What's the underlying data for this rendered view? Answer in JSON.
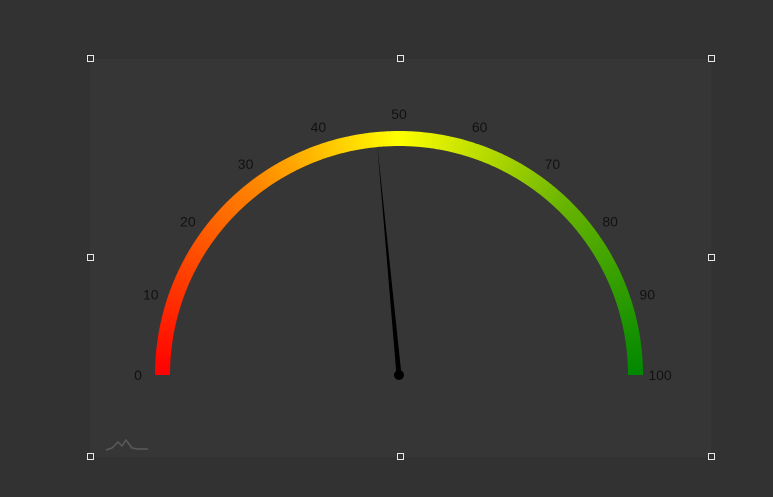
{
  "gauge": {
    "min": 0,
    "max": 100,
    "value": 47,
    "tick_labels": [
      "0",
      "10",
      "20",
      "30",
      "40",
      "50",
      "60",
      "70",
      "80",
      "90",
      "100"
    ],
    "color_stops": [
      {
        "at": 0,
        "color": "#ff0000"
      },
      {
        "at": 30,
        "color": "#ff8800"
      },
      {
        "at": 50,
        "color": "#ffff00"
      },
      {
        "at": 75,
        "color": "#66b300"
      },
      {
        "at": 100,
        "color": "#008800"
      }
    ],
    "needle_color": "#000000",
    "label_color": "#111111"
  },
  "selection_handles": [
    "top-left",
    "top-center",
    "top-right",
    "middle-left",
    "middle-right",
    "bottom-left",
    "bottom-center",
    "bottom-right"
  ],
  "watermark_icon": "chart-watermark-icon"
}
